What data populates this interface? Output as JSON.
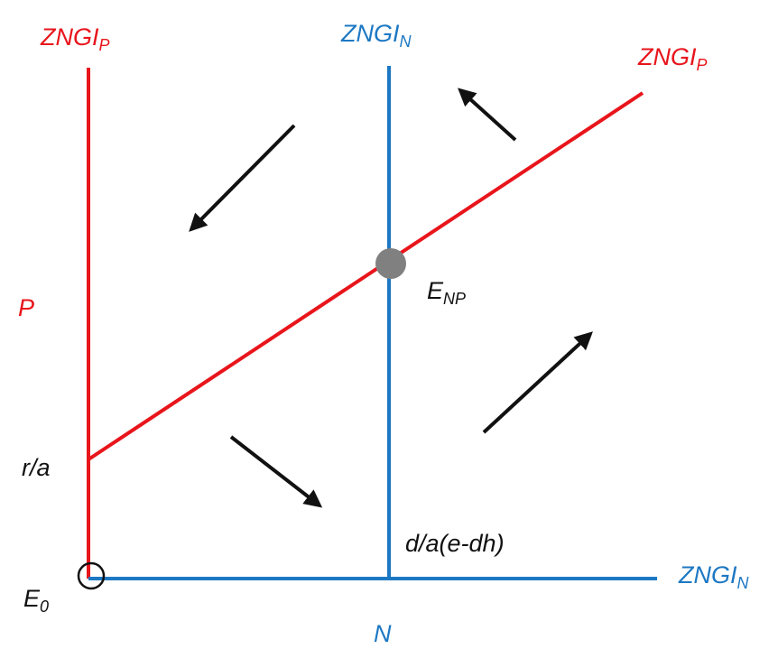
{
  "colors": {
    "p_isocline": "#e8151b",
    "n_isocline": "#1d78c3",
    "equilibrium_fill": "#808080",
    "arrow": "#000000"
  },
  "labels": {
    "zngi_p_vertical": {
      "main": "ZNGI",
      "sub": "P"
    },
    "zngi_n_vertical": {
      "main": "ZNGI",
      "sub": "N"
    },
    "zngi_p_diagonal": {
      "main": "ZNGI",
      "sub": "P"
    },
    "zngi_n_horizontal": {
      "main": "ZNGI",
      "sub": "N"
    },
    "axis_p": "P",
    "axis_n": "N",
    "r_over_a": "r/a",
    "n_intercept": "d/a(e-dh)",
    "e_np": {
      "main": "E",
      "sub": "NP"
    },
    "e_0": {
      "main": "E",
      "sub": "0"
    }
  },
  "markers": {
    "interior_equilibrium": "filled-gray-circle",
    "origin_equilibrium": "open-circle"
  },
  "arrow_directions": [
    "down-left",
    "up-left",
    "down-right",
    "up-right"
  ]
}
